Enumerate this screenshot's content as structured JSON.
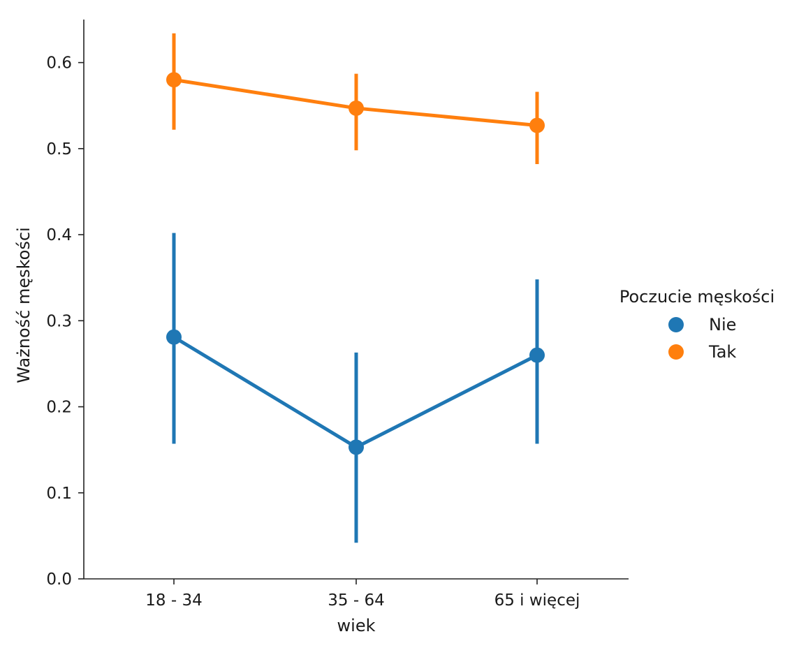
{
  "chart_data": {
    "type": "line",
    "title": "",
    "xlabel": "wiek",
    "ylabel": "Ważność męskości",
    "categories": [
      "18 - 34",
      "35 - 64",
      "65 i więcej"
    ],
    "ylim": [
      0.0,
      0.65
    ],
    "yticks": [
      0.0,
      0.1,
      0.2,
      0.3,
      0.4,
      0.5,
      0.6
    ],
    "ytick_labels": [
      "0.0",
      "0.1",
      "0.2",
      "0.3",
      "0.4",
      "0.5",
      "0.6"
    ],
    "grid": false,
    "legend": {
      "title": "Poczucie męskości",
      "placement": "right"
    },
    "series": [
      {
        "name": "Nie",
        "color": "#1f77b4",
        "values": [
          0.281,
          0.153,
          0.26
        ],
        "ci_low": [
          0.157,
          0.042,
          0.157
        ],
        "ci_high": [
          0.402,
          0.263,
          0.348
        ]
      },
      {
        "name": "Tak",
        "color": "#ff7f0e",
        "values": [
          0.58,
          0.547,
          0.527
        ],
        "ci_low": [
          0.522,
          0.498,
          0.482
        ],
        "ci_high": [
          0.634,
          0.587,
          0.566
        ]
      }
    ]
  }
}
